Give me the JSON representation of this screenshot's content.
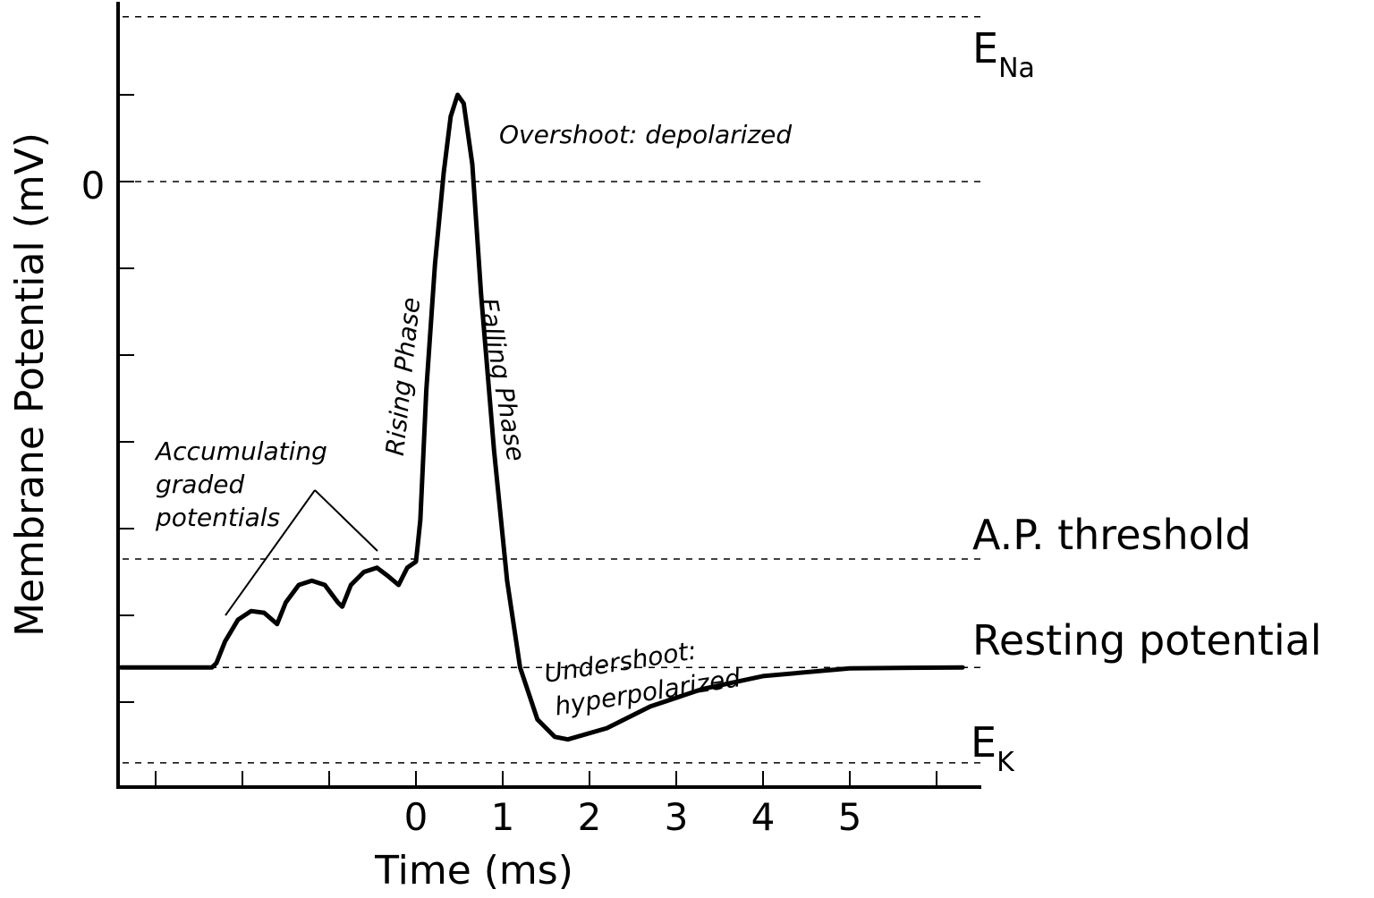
{
  "chart_data": {
    "type": "line",
    "xlabel": "Time (ms)",
    "ylabel": "Membrane Potential (mV)",
    "x_ticks": [
      "0",
      "1",
      "2",
      "3",
      "4",
      "5"
    ],
    "y_tick_labels": [
      "0"
    ],
    "x_range": [
      -3,
      6.5
    ],
    "grid": false,
    "reference_lines": [
      {
        "key": "ena",
        "label": "E",
        "sub": "Na",
        "y": 1.9
      },
      {
        "key": "zero",
        "label": "",
        "sub": "",
        "y": 0
      },
      {
        "key": "threshold",
        "label": "A.P. threshold",
        "sub": "",
        "y": -4.35
      },
      {
        "key": "resting",
        "label": "Resting potential",
        "sub": "",
        "y": -5.6
      },
      {
        "key": "ek",
        "label": "E",
        "sub": "K",
        "y": -6.7
      }
    ],
    "series": [
      {
        "points": [
          [
            -3.4,
            -5.6
          ],
          [
            -2.35,
            -5.6
          ],
          [
            -2.3,
            -5.55
          ],
          [
            -2.2,
            -5.3
          ],
          [
            -2.05,
            -5.05
          ],
          [
            -1.9,
            -4.95
          ],
          [
            -1.75,
            -4.97
          ],
          [
            -1.6,
            -5.1
          ],
          [
            -1.6,
            -5.1
          ],
          [
            -1.5,
            -4.85
          ],
          [
            -1.35,
            -4.65
          ],
          [
            -1.2,
            -4.6
          ],
          [
            -1.05,
            -4.65
          ],
          [
            -0.9,
            -4.85
          ],
          [
            -0.85,
            -4.9
          ],
          [
            -0.75,
            -4.65
          ],
          [
            -0.6,
            -4.5
          ],
          [
            -0.45,
            -4.45
          ],
          [
            -0.32,
            -4.55
          ],
          [
            -0.2,
            -4.65
          ],
          [
            -0.1,
            -4.45
          ],
          [
            0.0,
            -4.38
          ],
          [
            0.02,
            -4.2
          ],
          [
            0.05,
            -3.9
          ],
          [
            0.12,
            -2.4
          ],
          [
            0.22,
            -0.95
          ],
          [
            0.32,
            0.1
          ],
          [
            0.4,
            0.75
          ],
          [
            0.48,
            1.0
          ],
          [
            0.55,
            0.9
          ],
          [
            0.65,
            0.2
          ],
          [
            0.75,
            -1.3
          ],
          [
            0.9,
            -3.1
          ],
          [
            1.05,
            -4.6
          ],
          [
            1.2,
            -5.6
          ],
          [
            1.4,
            -6.2
          ],
          [
            1.6,
            -6.4
          ],
          [
            1.75,
            -6.43
          ],
          [
            2.2,
            -6.3
          ],
          [
            2.7,
            -6.05
          ],
          [
            3.3,
            -5.85
          ],
          [
            4.0,
            -5.7
          ],
          [
            5.0,
            -5.61
          ],
          [
            6.3,
            -5.6
          ]
        ]
      }
    ],
    "annotations": {
      "accumulating": [
        "Accumulating",
        "graded",
        "potentials"
      ],
      "rising": "Rising Phase",
      "falling": "Falling Phase",
      "overshoot": "Overshoot: depolarized",
      "undershoot": [
        "Undershoot:",
        "hyperpolarized"
      ]
    }
  }
}
